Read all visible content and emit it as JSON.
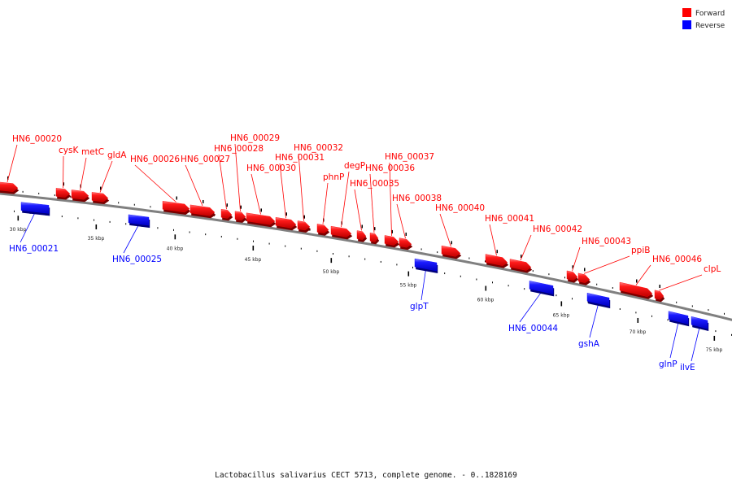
{
  "caption": "Lactobacillus salivarius CECT 5713, complete genome. - 0..1828169",
  "colors": {
    "forward": "#ff0000",
    "reverse": "#0000ff",
    "backbone": "#808080"
  },
  "legend": [
    {
      "key": "forward",
      "label": "Forward"
    },
    {
      "key": "reverse",
      "label": "Reverse"
    }
  ],
  "scale_ticks": [
    "30 kbp",
    "35 kbp",
    "40 kbp",
    "45 kbp",
    "50 kbp",
    "55 kbp",
    "60 kbp",
    "65 kbp",
    "70 kbp",
    "75 kbp"
  ],
  "genes": [
    {
      "name": "HN6_00020",
      "strand": "forward"
    },
    {
      "name": "HN6_00021",
      "strand": "reverse"
    },
    {
      "name": "cysK",
      "strand": "forward"
    },
    {
      "name": "metC",
      "strand": "forward"
    },
    {
      "name": "gldA",
      "strand": "forward"
    },
    {
      "name": "HN6_00025",
      "strand": "reverse"
    },
    {
      "name": "HN6_00026",
      "strand": "forward"
    },
    {
      "name": "HN6_00027",
      "strand": "forward"
    },
    {
      "name": "HN6_00028",
      "strand": "forward"
    },
    {
      "name": "HN6_00029",
      "strand": "forward"
    },
    {
      "name": "HN6_00030",
      "strand": "forward"
    },
    {
      "name": "HN6_00031",
      "strand": "forward"
    },
    {
      "name": "HN6_00032",
      "strand": "forward"
    },
    {
      "name": "phnP",
      "strand": "forward"
    },
    {
      "name": "degP",
      "strand": "forward"
    },
    {
      "name": "HN6_00035",
      "strand": "forward"
    },
    {
      "name": "HN6_00036",
      "strand": "forward"
    },
    {
      "name": "HN6_00037",
      "strand": "forward"
    },
    {
      "name": "HN6_00038",
      "strand": "forward"
    },
    {
      "name": "glpT",
      "strand": "reverse"
    },
    {
      "name": "HN6_00040",
      "strand": "forward"
    },
    {
      "name": "HN6_00041",
      "strand": "forward"
    },
    {
      "name": "HN6_00042",
      "strand": "forward"
    },
    {
      "name": "HN6_00043",
      "strand": "forward"
    },
    {
      "name": "HN6_00044",
      "strand": "reverse"
    },
    {
      "name": "ppiB",
      "strand": "forward"
    },
    {
      "name": "gshA",
      "strand": "reverse"
    },
    {
      "name": "HN6_00046",
      "strand": "forward"
    },
    {
      "name": "clpL",
      "strand": "forward"
    },
    {
      "name": "glnP",
      "strand": "reverse"
    },
    {
      "name": "ilvE",
      "strand": "reverse"
    }
  ]
}
